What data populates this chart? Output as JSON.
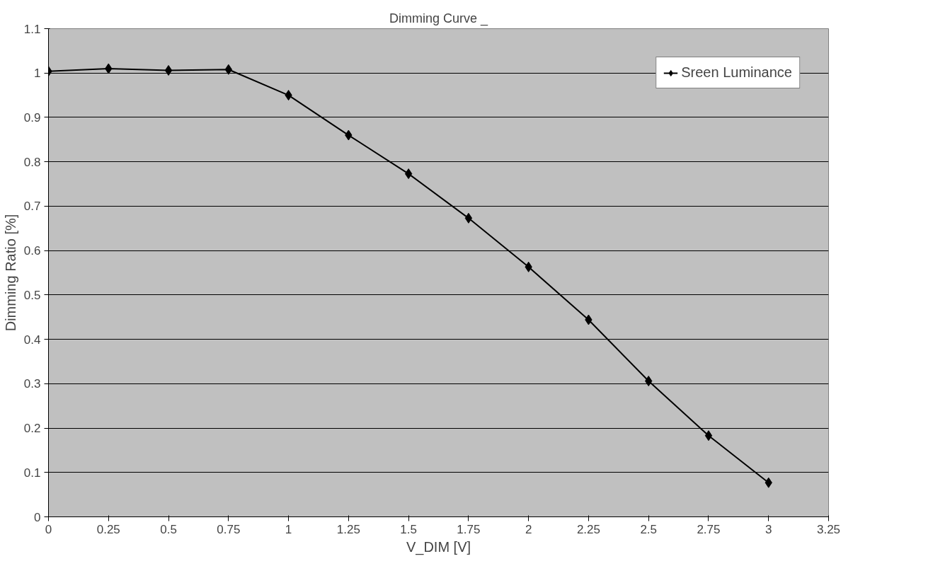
{
  "chart_data": {
    "type": "line",
    "title": "Dimming Curve _",
    "xlabel": "V_DIM [V]",
    "ylabel": "Dimming Ratio [%]",
    "x": [
      0,
      0.25,
      0.5,
      0.75,
      1,
      1.25,
      1.5,
      1.75,
      2,
      2.25,
      2.5,
      2.75,
      3
    ],
    "series": [
      {
        "name": "Sreen Luminance",
        "color": "#000000",
        "values": [
          1.004,
          1.01,
          1.006,
          1.008,
          0.95,
          0.86,
          0.773,
          0.673,
          0.563,
          0.444,
          0.306,
          0.183,
          0.077
        ]
      }
    ],
    "xlim": [
      0,
      3.25
    ],
    "xticks": [
      0,
      0.25,
      0.5,
      0.75,
      1,
      1.25,
      1.5,
      1.75,
      2,
      2.25,
      2.5,
      2.75,
      3,
      3.25
    ],
    "ylim": [
      0,
      1.1
    ],
    "yticks": [
      0,
      0.1,
      0.2,
      0.3,
      0.4,
      0.5,
      0.6,
      0.7,
      0.8,
      0.9,
      1,
      1.1
    ],
    "grid": "y",
    "legend": "top right",
    "marker": "diamond",
    "line_style": "solid"
  }
}
